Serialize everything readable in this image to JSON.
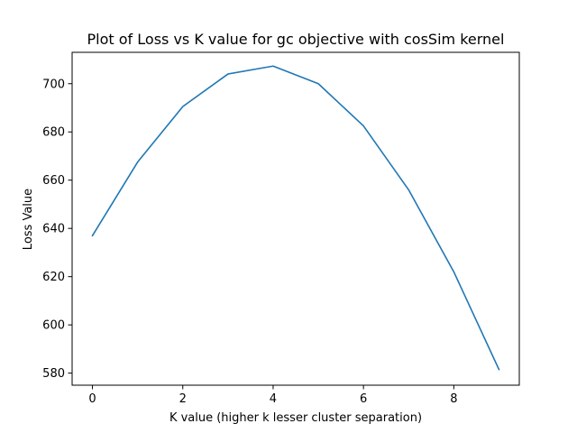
{
  "chart_data": {
    "type": "line",
    "title": "Plot of Loss vs K value for gc objective with cosSim kernel",
    "xlabel": "K value (higher k lesser cluster separation)",
    "ylabel": "Loss Value",
    "xlim": [
      -0.45,
      9.45
    ],
    "ylim": [
      575,
      713
    ],
    "xticks": [
      0,
      2,
      4,
      6,
      8
    ],
    "yticks": [
      580,
      600,
      620,
      640,
      660,
      680,
      700
    ],
    "grid": false,
    "legend": false,
    "series": [
      {
        "color": "#1f77b4",
        "x": [
          0,
          1,
          2,
          3,
          4,
          5,
          6,
          7,
          8,
          9
        ],
        "y": [
          637,
          667.5,
          690.5,
          704,
          707.3,
          700,
          682.5,
          656,
          622,
          581.5
        ]
      }
    ]
  }
}
